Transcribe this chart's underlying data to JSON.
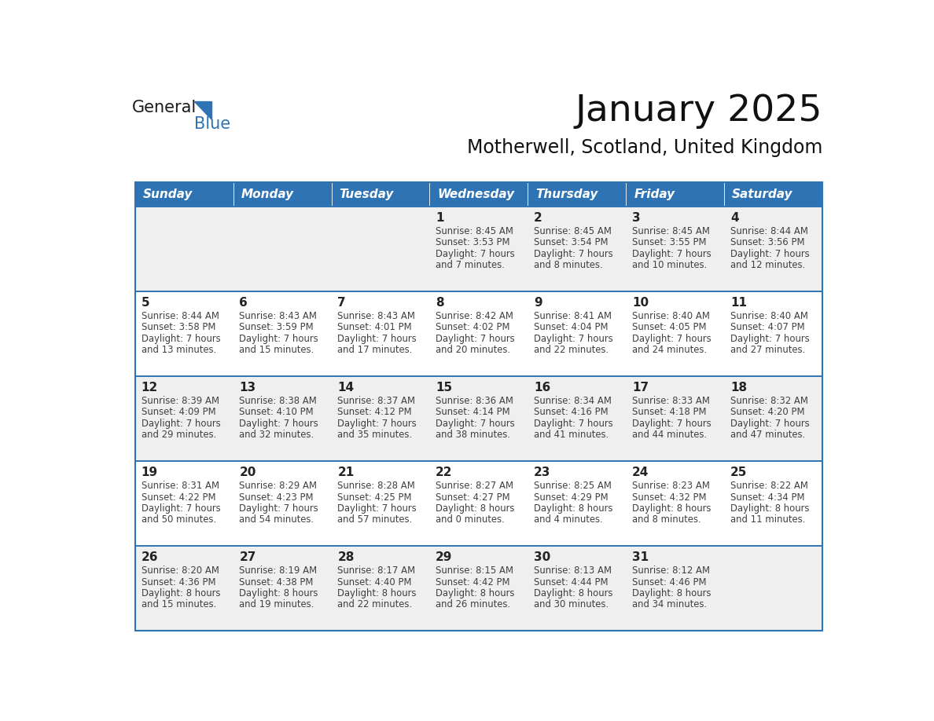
{
  "title": "January 2025",
  "subtitle": "Motherwell, Scotland, United Kingdom",
  "header_color": "#2e74b5",
  "header_text_color": "#ffffff",
  "day_names": [
    "Sunday",
    "Monday",
    "Tuesday",
    "Wednesday",
    "Thursday",
    "Friday",
    "Saturday"
  ],
  "row_colors": [
    "#efefef",
    "#ffffff"
  ],
  "grid_line_color": "#2e74b5",
  "text_color": "#404040",
  "day_num_color": "#222222",
  "logo_general_color": "#1a1a1a",
  "logo_blue_color": "#2e74b5",
  "weeks": [
    [
      {
        "day": null,
        "sunrise": null,
        "sunset": null,
        "daylight": null
      },
      {
        "day": null,
        "sunrise": null,
        "sunset": null,
        "daylight": null
      },
      {
        "day": null,
        "sunrise": null,
        "sunset": null,
        "daylight": null
      },
      {
        "day": 1,
        "sunrise": "8:45 AM",
        "sunset": "3:53 PM",
        "daylight": "7 hours and 7 minutes."
      },
      {
        "day": 2,
        "sunrise": "8:45 AM",
        "sunset": "3:54 PM",
        "daylight": "7 hours and 8 minutes."
      },
      {
        "day": 3,
        "sunrise": "8:45 AM",
        "sunset": "3:55 PM",
        "daylight": "7 hours and 10 minutes."
      },
      {
        "day": 4,
        "sunrise": "8:44 AM",
        "sunset": "3:56 PM",
        "daylight": "7 hours and 12 minutes."
      }
    ],
    [
      {
        "day": 5,
        "sunrise": "8:44 AM",
        "sunset": "3:58 PM",
        "daylight": "7 hours and 13 minutes."
      },
      {
        "day": 6,
        "sunrise": "8:43 AM",
        "sunset": "3:59 PM",
        "daylight": "7 hours and 15 minutes."
      },
      {
        "day": 7,
        "sunrise": "8:43 AM",
        "sunset": "4:01 PM",
        "daylight": "7 hours and 17 minutes."
      },
      {
        "day": 8,
        "sunrise": "8:42 AM",
        "sunset": "4:02 PM",
        "daylight": "7 hours and 20 minutes."
      },
      {
        "day": 9,
        "sunrise": "8:41 AM",
        "sunset": "4:04 PM",
        "daylight": "7 hours and 22 minutes."
      },
      {
        "day": 10,
        "sunrise": "8:40 AM",
        "sunset": "4:05 PM",
        "daylight": "7 hours and 24 minutes."
      },
      {
        "day": 11,
        "sunrise": "8:40 AM",
        "sunset": "4:07 PM",
        "daylight": "7 hours and 27 minutes."
      }
    ],
    [
      {
        "day": 12,
        "sunrise": "8:39 AM",
        "sunset": "4:09 PM",
        "daylight": "7 hours and 29 minutes."
      },
      {
        "day": 13,
        "sunrise": "8:38 AM",
        "sunset": "4:10 PM",
        "daylight": "7 hours and 32 minutes."
      },
      {
        "day": 14,
        "sunrise": "8:37 AM",
        "sunset": "4:12 PM",
        "daylight": "7 hours and 35 minutes."
      },
      {
        "day": 15,
        "sunrise": "8:36 AM",
        "sunset": "4:14 PM",
        "daylight": "7 hours and 38 minutes."
      },
      {
        "day": 16,
        "sunrise": "8:34 AM",
        "sunset": "4:16 PM",
        "daylight": "7 hours and 41 minutes."
      },
      {
        "day": 17,
        "sunrise": "8:33 AM",
        "sunset": "4:18 PM",
        "daylight": "7 hours and 44 minutes."
      },
      {
        "day": 18,
        "sunrise": "8:32 AM",
        "sunset": "4:20 PM",
        "daylight": "7 hours and 47 minutes."
      }
    ],
    [
      {
        "day": 19,
        "sunrise": "8:31 AM",
        "sunset": "4:22 PM",
        "daylight": "7 hours and 50 minutes."
      },
      {
        "day": 20,
        "sunrise": "8:29 AM",
        "sunset": "4:23 PM",
        "daylight": "7 hours and 54 minutes."
      },
      {
        "day": 21,
        "sunrise": "8:28 AM",
        "sunset": "4:25 PM",
        "daylight": "7 hours and 57 minutes."
      },
      {
        "day": 22,
        "sunrise": "8:27 AM",
        "sunset": "4:27 PM",
        "daylight": "8 hours and 0 minutes."
      },
      {
        "day": 23,
        "sunrise": "8:25 AM",
        "sunset": "4:29 PM",
        "daylight": "8 hours and 4 minutes."
      },
      {
        "day": 24,
        "sunrise": "8:23 AM",
        "sunset": "4:32 PM",
        "daylight": "8 hours and 8 minutes."
      },
      {
        "day": 25,
        "sunrise": "8:22 AM",
        "sunset": "4:34 PM",
        "daylight": "8 hours and 11 minutes."
      }
    ],
    [
      {
        "day": 26,
        "sunrise": "8:20 AM",
        "sunset": "4:36 PM",
        "daylight": "8 hours and 15 minutes."
      },
      {
        "day": 27,
        "sunrise": "8:19 AM",
        "sunset": "4:38 PM",
        "daylight": "8 hours and 19 minutes."
      },
      {
        "day": 28,
        "sunrise": "8:17 AM",
        "sunset": "4:40 PM",
        "daylight": "8 hours and 22 minutes."
      },
      {
        "day": 29,
        "sunrise": "8:15 AM",
        "sunset": "4:42 PM",
        "daylight": "8 hours and 26 minutes."
      },
      {
        "day": 30,
        "sunrise": "8:13 AM",
        "sunset": "4:44 PM",
        "daylight": "8 hours and 30 minutes."
      },
      {
        "day": 31,
        "sunrise": "8:12 AM",
        "sunset": "4:46 PM",
        "daylight": "8 hours and 34 minutes."
      },
      {
        "day": null,
        "sunrise": null,
        "sunset": null,
        "daylight": null
      }
    ]
  ]
}
